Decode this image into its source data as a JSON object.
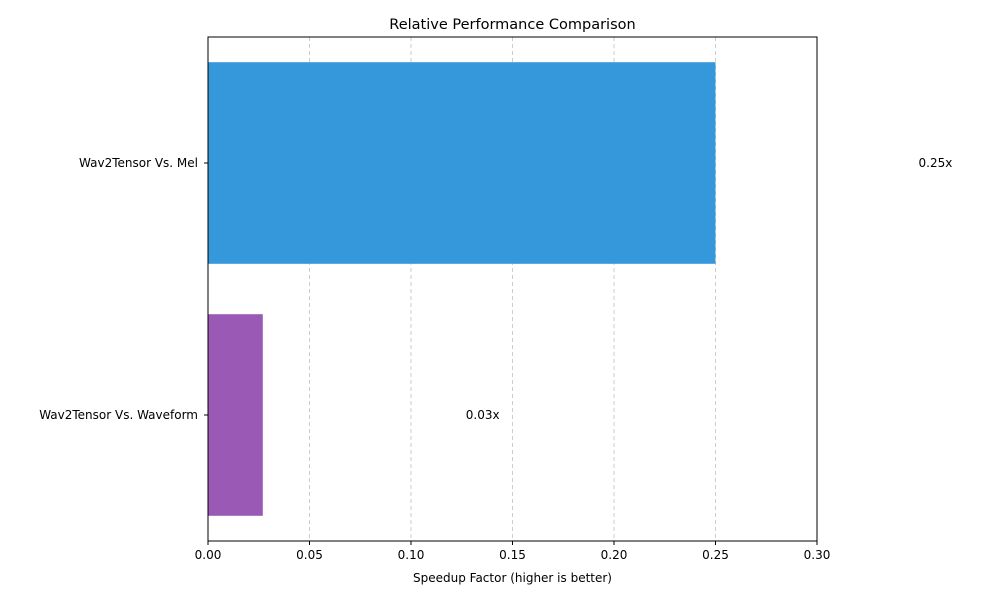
{
  "chart_data": {
    "type": "bar",
    "orientation": "horizontal",
    "title": "Relative Performance Comparison",
    "xlabel": "Speedup Factor (higher is better)",
    "ylabel": "",
    "xlim": [
      0,
      0.3
    ],
    "xticks": [
      "0.00",
      "0.05",
      "0.10",
      "0.15",
      "0.20",
      "0.25",
      "0.30"
    ],
    "grid": "x, dashed",
    "categories": [
      "Wav2Tensor Vs. Mel",
      "Wav2Tensor Vs. Waveform"
    ],
    "values": [
      0.25,
      0.027
    ],
    "data_labels": [
      "0.25x",
      "0.03x"
    ],
    "colors": [
      "#3498db",
      "#9b59b6"
    ]
  }
}
